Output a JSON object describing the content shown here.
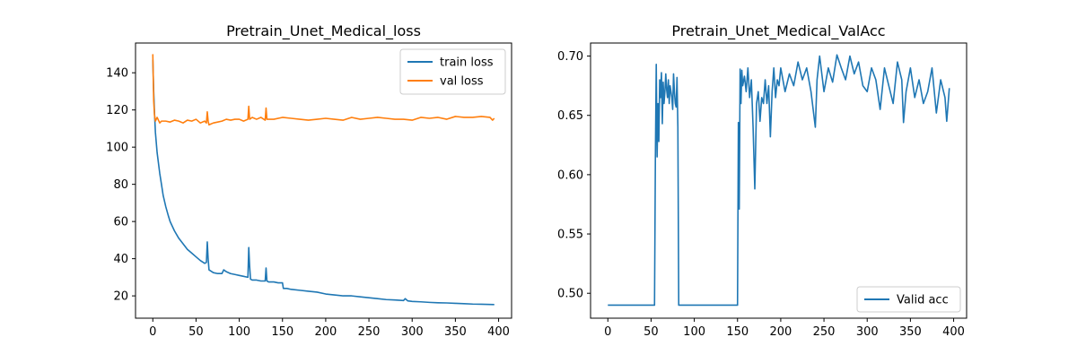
{
  "chart_data": [
    {
      "type": "line",
      "title": "Pretrain_Unet_Medical_loss",
      "xlabel": "",
      "ylabel": "",
      "xlim": [
        -20,
        415
      ],
      "ylim": [
        8,
        156
      ],
      "xticks": [
        0,
        50,
        100,
        150,
        200,
        250,
        300,
        350,
        400
      ],
      "yticks": [
        20,
        40,
        60,
        80,
        100,
        120,
        140
      ],
      "grid": false,
      "legend": "upper-right",
      "series": [
        {
          "name": "train loss",
          "color": "#1f77b4",
          "x": [
            0,
            1,
            2,
            3,
            5,
            8,
            10,
            12,
            15,
            18,
            20,
            25,
            30,
            35,
            40,
            45,
            50,
            55,
            60,
            62,
            63,
            64,
            65,
            70,
            75,
            80,
            82,
            85,
            90,
            95,
            100,
            105,
            110,
            111,
            112,
            113,
            115,
            120,
            125,
            130,
            131,
            132,
            134,
            136,
            140,
            145,
            150,
            151,
            155,
            160,
            170,
            180,
            190,
            200,
            210,
            220,
            230,
            240,
            250,
            260,
            270,
            280,
            290,
            292,
            295,
            300,
            310,
            320,
            330,
            340,
            350,
            360,
            370,
            380,
            390,
            395
          ],
          "y": [
            147,
            130,
            118,
            108,
            97,
            86,
            80,
            74,
            68,
            63,
            60,
            55,
            51,
            48,
            45,
            43,
            41,
            39,
            37.5,
            38,
            49,
            40,
            34,
            32.5,
            32,
            32,
            34,
            33,
            32,
            31.5,
            31,
            30.5,
            30,
            46,
            36,
            29,
            28.5,
            28.5,
            28,
            28,
            35,
            28,
            27.5,
            27.5,
            27.5,
            27,
            27,
            24,
            24,
            23.5,
            23,
            22.5,
            22,
            21,
            20.5,
            20,
            20,
            19.5,
            19,
            18.5,
            18,
            17.8,
            17.5,
            18.5,
            17.3,
            17,
            16.8,
            16.5,
            16.3,
            16.2,
            16,
            15.8,
            15.6,
            15.5,
            15.4,
            15.3
          ]
        },
        {
          "name": "val loss",
          "color": "#ff7f0e",
          "x": [
            0,
            1,
            2,
            3,
            5,
            8,
            10,
            15,
            20,
            25,
            30,
            35,
            40,
            45,
            50,
            55,
            60,
            62,
            63,
            64,
            65,
            70,
            75,
            80,
            85,
            90,
            95,
            100,
            105,
            110,
            111,
            112,
            115,
            120,
            125,
            130,
            131,
            132,
            135,
            140,
            150,
            160,
            170,
            180,
            190,
            200,
            210,
            220,
            230,
            240,
            250,
            260,
            270,
            280,
            290,
            300,
            310,
            320,
            330,
            340,
            350,
            360,
            370,
            380,
            390,
            393,
            395
          ],
          "y": [
            150,
            125,
            117,
            114,
            116,
            113,
            114,
            114,
            113.5,
            114.5,
            114,
            113,
            114.5,
            114,
            115,
            113,
            114,
            113,
            119,
            114,
            112,
            113,
            113.5,
            114,
            115,
            114.5,
            115,
            115,
            114,
            115,
            122,
            115,
            116,
            115,
            116,
            114.5,
            121,
            115,
            115,
            115,
            116,
            115.5,
            115,
            114.5,
            115,
            115.5,
            115,
            114.5,
            116,
            115,
            115.5,
            116,
            115.5,
            115,
            115,
            114.5,
            116,
            115.5,
            116,
            115,
            116.5,
            116,
            116,
            116.5,
            116,
            114.5,
            115.5
          ]
        }
      ]
    },
    {
      "type": "line",
      "title": "Pretrain_Unet_Medical_ValAcc",
      "xlabel": "",
      "ylabel": "",
      "xlim": [
        -20,
        415
      ],
      "ylim": [
        0.479,
        0.711
      ],
      "xticks": [
        0,
        50,
        100,
        150,
        200,
        250,
        300,
        350,
        400
      ],
      "yticks": [
        0.5,
        0.55,
        0.6,
        0.65,
        0.7
      ],
      "ytick_labels": [
        "0.50",
        "0.55",
        "0.60",
        "0.65",
        "0.70"
      ],
      "grid": false,
      "legend": "lower-right",
      "series": [
        {
          "name": "Valid acc",
          "color": "#1f77b4",
          "x": [
            0,
            54,
            55,
            56,
            57,
            58,
            59,
            60,
            61,
            62,
            63,
            64,
            65,
            66,
            67,
            68,
            69,
            70,
            71,
            72,
            73,
            74,
            75,
            76,
            77,
            78,
            79,
            80,
            81,
            82,
            150,
            151,
            152,
            153,
            154,
            155,
            156,
            158,
            160,
            162,
            164,
            166,
            168,
            170,
            172,
            174,
            176,
            178,
            180,
            182,
            184,
            186,
            188,
            190,
            192,
            194,
            196,
            198,
            200,
            205,
            210,
            215,
            220,
            225,
            230,
            235,
            240,
            241,
            242,
            245,
            250,
            255,
            260,
            265,
            270,
            275,
            280,
            285,
            290,
            295,
            300,
            305,
            310,
            315,
            320,
            325,
            330,
            335,
            340,
            342,
            345,
            350,
            355,
            360,
            365,
            370,
            375,
            380,
            385,
            390,
            392,
            395
          ],
          "y": [
            0.49,
            0.49,
            0.615,
            0.693,
            0.615,
            0.66,
            0.628,
            0.68,
            0.665,
            0.686,
            0.643,
            0.678,
            0.66,
            0.67,
            0.685,
            0.672,
            0.665,
            0.68,
            0.66,
            0.675,
            0.67,
            0.665,
            0.655,
            0.685,
            0.67,
            0.66,
            0.657,
            0.682,
            0.64,
            0.49,
            0.49,
            0.644,
            0.571,
            0.689,
            0.66,
            0.688,
            0.675,
            0.683,
            0.67,
            0.69,
            0.665,
            0.68,
            0.64,
            0.588,
            0.66,
            0.67,
            0.645,
            0.665,
            0.66,
            0.68,
            0.66,
            0.675,
            0.632,
            0.67,
            0.69,
            0.665,
            0.68,
            0.675,
            0.69,
            0.67,
            0.685,
            0.675,
            0.695,
            0.68,
            0.69,
            0.67,
            0.64,
            0.66,
            0.68,
            0.7,
            0.67,
            0.69,
            0.678,
            0.701,
            0.69,
            0.68,
            0.7,
            0.685,
            0.695,
            0.675,
            0.67,
            0.69,
            0.68,
            0.655,
            0.69,
            0.675,
            0.66,
            0.695,
            0.68,
            0.644,
            0.67,
            0.69,
            0.665,
            0.68,
            0.66,
            0.67,
            0.69,
            0.652,
            0.68,
            0.665,
            0.645,
            0.673
          ]
        }
      ]
    }
  ]
}
